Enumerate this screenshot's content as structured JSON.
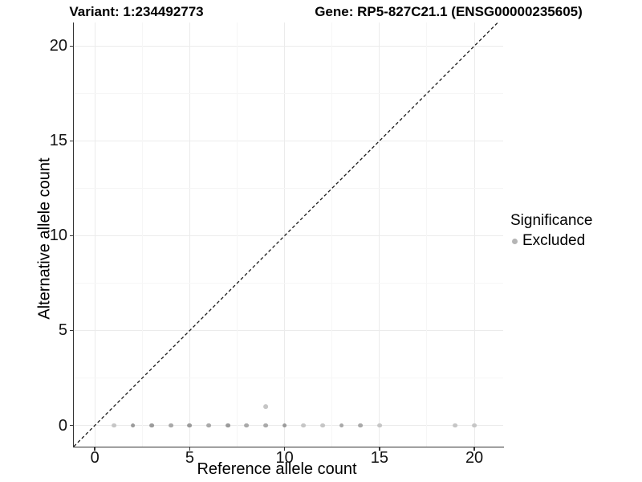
{
  "chart_data": {
    "type": "scatter",
    "title_left": "Variant: 1:234492773",
    "title_right": "Gene: RP5-827C21.1 (ENSG00000235605)",
    "xlabel": "Reference allele count",
    "ylabel": "Alternative allele count",
    "xlim": [
      -1.11,
      21.52
    ],
    "ylim": [
      -1.12,
      21.24
    ],
    "x_ticks": [
      0,
      5,
      10,
      15,
      20
    ],
    "y_ticks": [
      0,
      5,
      10,
      15,
      20
    ],
    "x_minor": [
      2.5,
      7.5,
      12.5,
      17.5
    ],
    "y_minor": [
      2.5,
      7.5,
      12.5,
      17.5
    ],
    "grid": "major and minor gridlines on white background",
    "reference_line": {
      "kind": "identity",
      "slope": 1,
      "intercept": 0,
      "style": "dashed",
      "color": "#1a1a1a"
    },
    "legend": {
      "title": "Significance",
      "position": "right",
      "entries": [
        {
          "label": "Excluded",
          "color": "#b5b5b5"
        }
      ]
    },
    "point_shades": {
      "dark": "#9b9b9b",
      "medium": "#a9a9a9",
      "light": "#c6c6c6"
    },
    "series": [
      {
        "name": "Excluded",
        "marker": "circle",
        "points": [
          {
            "x": 1,
            "y": 0,
            "shade": "light"
          },
          {
            "x": 2,
            "y": 0,
            "shade": "dark"
          },
          {
            "x": 3,
            "y": 0,
            "shade": "dark"
          },
          {
            "x": 4,
            "y": 0,
            "shade": "medium"
          },
          {
            "x": 5,
            "y": 0,
            "shade": "dark"
          },
          {
            "x": 6,
            "y": 0,
            "shade": "medium"
          },
          {
            "x": 7,
            "y": 0,
            "shade": "dark"
          },
          {
            "x": 8,
            "y": 0,
            "shade": "medium"
          },
          {
            "x": 9,
            "y": 0,
            "shade": "medium"
          },
          {
            "x": 9,
            "y": 1,
            "shade": "light"
          },
          {
            "x": 10,
            "y": 0,
            "shade": "dark"
          },
          {
            "x": 11,
            "y": 0,
            "shade": "light"
          },
          {
            "x": 12,
            "y": 0,
            "shade": "light"
          },
          {
            "x": 13,
            "y": 0,
            "shade": "medium"
          },
          {
            "x": 14,
            "y": 0,
            "shade": "medium"
          },
          {
            "x": 15,
            "y": 0,
            "shade": "light"
          },
          {
            "x": 19,
            "y": 0,
            "shade": "light"
          },
          {
            "x": 20,
            "y": 0,
            "shade": "light"
          }
        ]
      }
    ]
  },
  "colors": {
    "background": "#ffffff",
    "grid_major": "#ebebeb",
    "grid_minor": "#f6f6f6",
    "axis_line": "#333333",
    "text": "#000000"
  }
}
